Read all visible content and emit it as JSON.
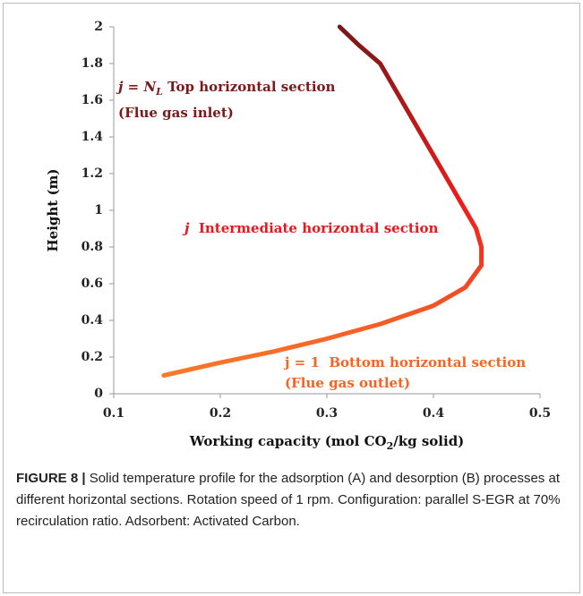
{
  "chart_data": {
    "type": "line",
    "ylabel": "Height (m)",
    "xlabel": [
      "Working capacity (mol CO",
      "2",
      "/kg solid)"
    ],
    "xlim": [
      0.1,
      0.5
    ],
    "xticks": [
      0.1,
      0.2,
      0.3,
      0.4,
      0.5
    ],
    "ylim": [
      0,
      2
    ],
    "yticks": [
      0,
      0.2,
      0.4,
      0.6,
      0.8,
      1,
      1.2,
      1.4,
      1.6,
      1.8,
      2
    ],
    "series": [
      {
        "gradient": [
          "#f77a2a",
          "#ee1b1b",
          "#7a1717"
        ],
        "x": [
          0.147,
          0.2,
          0.25,
          0.3,
          0.35,
          0.4,
          0.43,
          0.445,
          0.445,
          0.44,
          0.43,
          0.41,
          0.39,
          0.37,
          0.35,
          0.33,
          0.312
        ],
        "values": [
          0.1,
          0.17,
          0.23,
          0.3,
          0.38,
          0.48,
          0.58,
          0.7,
          0.8,
          0.9,
          1.0,
          1.2,
          1.4,
          1.6,
          1.8,
          1.9,
          2.0
        ]
      }
    ],
    "annotations": [
      {
        "color": "#7b1a1a",
        "lines": [
          [
            "j = N",
            "L",
            " Top horizontal section"
          ],
          [
            "(Flue gas inlet)"
          ]
        ]
      },
      {
        "color": "#e8191e",
        "lines": [
          [
            "j",
            "  Intermediate horizontal section"
          ]
        ]
      },
      {
        "color": "#f26522",
        "lines": [
          [
            "j = 1  Bottom horizontal section"
          ],
          [
            "(Flue gas outlet)"
          ]
        ]
      }
    ]
  },
  "caption": {
    "label": "FIGURE 8 |",
    "text": " Solid temperature profile for the adsorption (A) and desorption (B) processes at different horizontal sections. Rotation speed of 1 rpm. Configuration: parallel S-EGR at 70% recirculation ratio. Adsorbent: Activated Carbon."
  }
}
